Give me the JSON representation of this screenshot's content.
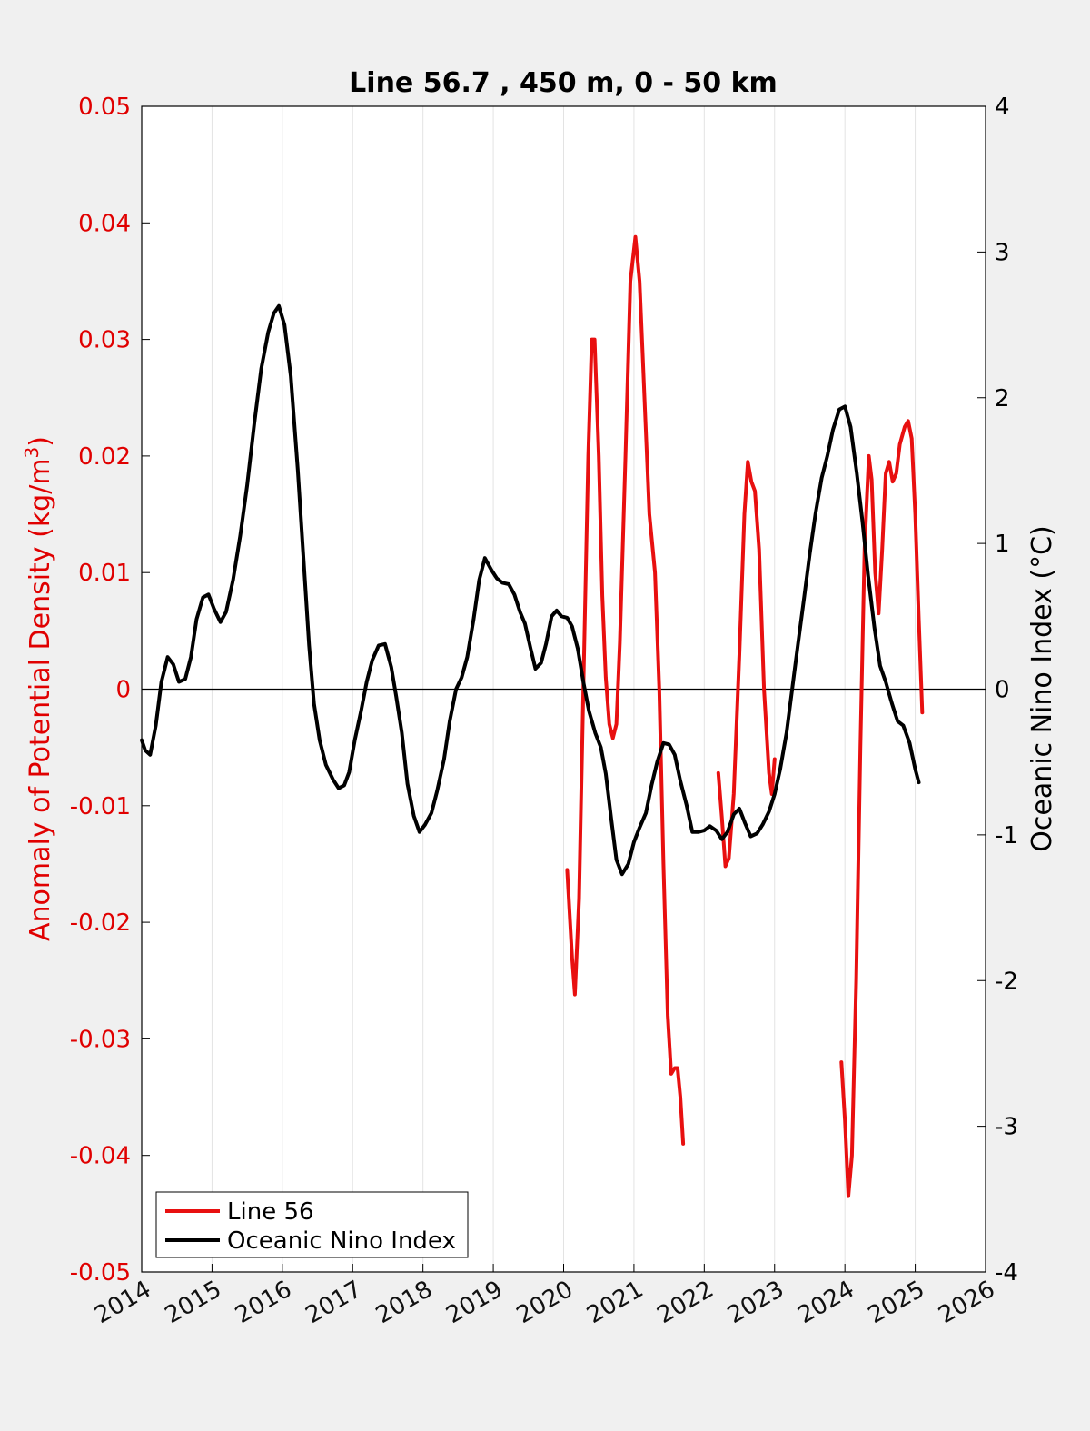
{
  "chart_data": {
    "type": "line",
    "title": "Line 56.7 , 450 m, 0 - 50 km",
    "xlim": [
      2014,
      2026
    ],
    "x_ticks": [
      "2014",
      "2015",
      "2016",
      "2017",
      "2018",
      "2019",
      "2020",
      "2021",
      "2022",
      "2023",
      "2024",
      "2025",
      "2026"
    ],
    "ylabel_left": {
      "prefix": "Anomaly of Potential Density (kg/m",
      "sup": "3",
      "suffix": ")"
    },
    "ylim_left": [
      -0.05,
      0.05
    ],
    "y_ticks_left": [
      "-0.05",
      "-0.04",
      "-0.03",
      "-0.02",
      "-0.01",
      "0",
      "0.01",
      "0.02",
      "0.03",
      "0.04",
      "0.05"
    ],
    "ylabel_right": "Oceanic Nino Index (°C)",
    "ylim_right": [
      -4,
      4
    ],
    "y_ticks_right": [
      "-4",
      "-3",
      "-2",
      "-1",
      "0",
      "1",
      "2",
      "3",
      "4"
    ],
    "grid": "vertical",
    "zero_line": true,
    "legend_position": "bottom-left",
    "colors": {
      "line56": "#e81010",
      "oni": "#000000",
      "left_axis": "#e00000",
      "background": "#f0f0f0"
    },
    "series": [
      {
        "name": "Line 56",
        "axis": "left",
        "segments": [
          [
            [
              2020.05,
              -0.0155
            ],
            [
              2020.12,
              -0.023
            ],
            [
              2020.16,
              -0.0262
            ],
            [
              2020.22,
              -0.018
            ],
            [
              2020.28,
              0.0
            ],
            [
              2020.35,
              0.02
            ],
            [
              2020.4,
              0.03
            ],
            [
              2020.44,
              0.03
            ],
            [
              2020.5,
              0.02
            ],
            [
              2020.55,
              0.008
            ],
            [
              2020.6,
              0.001
            ],
            [
              2020.65,
              -0.003
            ],
            [
              2020.7,
              -0.0042
            ],
            [
              2020.75,
              -0.003
            ],
            [
              2020.8,
              0.004
            ],
            [
              2020.88,
              0.02
            ],
            [
              2020.95,
              0.035
            ],
            [
              2021.02,
              0.0388
            ],
            [
              2021.08,
              0.035
            ],
            [
              2021.15,
              0.025
            ],
            [
              2021.22,
              0.015
            ],
            [
              2021.3,
              0.01
            ],
            [
              2021.36,
              0.0
            ],
            [
              2021.42,
              -0.015
            ],
            [
              2021.48,
              -0.028
            ],
            [
              2021.53,
              -0.033
            ],
            [
              2021.58,
              -0.0325
            ],
            [
              2021.62,
              -0.0325
            ],
            [
              2021.66,
              -0.035
            ],
            [
              2021.7,
              -0.039
            ]
          ],
          [
            [
              2022.2,
              -0.0072
            ],
            [
              2022.25,
              -0.011
            ],
            [
              2022.3,
              -0.0152
            ],
            [
              2022.35,
              -0.0145
            ],
            [
              2022.42,
              -0.009
            ],
            [
              2022.5,
              0.003
            ],
            [
              2022.57,
              0.015
            ],
            [
              2022.62,
              0.0195
            ],
            [
              2022.67,
              0.0178
            ],
            [
              2022.72,
              0.017
            ],
            [
              2022.78,
              0.012
            ],
            [
              2022.85,
              0.0
            ],
            [
              2022.92,
              -0.0072
            ],
            [
              2022.96,
              -0.009
            ],
            [
              2023.0,
              -0.006
            ]
          ],
          [
            [
              2023.95,
              -0.032
            ],
            [
              2024.0,
              -0.037
            ],
            [
              2024.05,
              -0.0435
            ],
            [
              2024.1,
              -0.04
            ],
            [
              2024.16,
              -0.025
            ],
            [
              2024.22,
              -0.005
            ],
            [
              2024.28,
              0.012
            ],
            [
              2024.34,
              0.02
            ],
            [
              2024.38,
              0.018
            ],
            [
              2024.43,
              0.01
            ],
            [
              2024.48,
              0.0065
            ],
            [
              2024.53,
              0.012
            ],
            [
              2024.58,
              0.0185
            ],
            [
              2024.63,
              0.0195
            ],
            [
              2024.68,
              0.0178
            ],
            [
              2024.73,
              0.0185
            ],
            [
              2024.78,
              0.021
            ],
            [
              2024.85,
              0.0225
            ],
            [
              2024.9,
              0.023
            ],
            [
              2024.95,
              0.0215
            ],
            [
              2025.0,
              0.015
            ],
            [
              2025.05,
              0.006
            ],
            [
              2025.1,
              -0.002
            ]
          ]
        ]
      },
      {
        "name": "Oceanic Nino Index",
        "axis": "right",
        "points": [
          [
            2014.0,
            -0.35
          ],
          [
            2014.05,
            -0.42
          ],
          [
            2014.12,
            -0.45
          ],
          [
            2014.2,
            -0.25
          ],
          [
            2014.28,
            0.05
          ],
          [
            2014.37,
            0.22
          ],
          [
            2014.45,
            0.17
          ],
          [
            2014.53,
            0.05
          ],
          [
            2014.62,
            0.07
          ],
          [
            2014.7,
            0.22
          ],
          [
            2014.78,
            0.48
          ],
          [
            2014.87,
            0.63
          ],
          [
            2014.95,
            0.65
          ],
          [
            2015.03,
            0.55
          ],
          [
            2015.12,
            0.46
          ],
          [
            2015.2,
            0.53
          ],
          [
            2015.3,
            0.75
          ],
          [
            2015.4,
            1.05
          ],
          [
            2015.5,
            1.4
          ],
          [
            2015.6,
            1.82
          ],
          [
            2015.7,
            2.2
          ],
          [
            2015.8,
            2.45
          ],
          [
            2015.88,
            2.58
          ],
          [
            2015.95,
            2.63
          ],
          [
            2016.03,
            2.5
          ],
          [
            2016.12,
            2.15
          ],
          [
            2016.22,
            1.5
          ],
          [
            2016.3,
            0.9
          ],
          [
            2016.38,
            0.3
          ],
          [
            2016.45,
            -0.1
          ],
          [
            2016.53,
            -0.35
          ],
          [
            2016.62,
            -0.52
          ],
          [
            2016.72,
            -0.62
          ],
          [
            2016.8,
            -0.68
          ],
          [
            2016.88,
            -0.66
          ],
          [
            2016.95,
            -0.57
          ],
          [
            2017.03,
            -0.35
          ],
          [
            2017.12,
            -0.15
          ],
          [
            2017.2,
            0.05
          ],
          [
            2017.28,
            0.2
          ],
          [
            2017.37,
            0.3
          ],
          [
            2017.46,
            0.31
          ],
          [
            2017.55,
            0.15
          ],
          [
            2017.62,
            -0.05
          ],
          [
            2017.7,
            -0.3
          ],
          [
            2017.78,
            -0.65
          ],
          [
            2017.87,
            -0.87
          ],
          [
            2017.95,
            -0.98
          ],
          [
            2018.03,
            -0.93
          ],
          [
            2018.12,
            -0.85
          ],
          [
            2018.2,
            -0.7
          ],
          [
            2018.3,
            -0.48
          ],
          [
            2018.38,
            -0.22
          ],
          [
            2018.47,
            0.0
          ],
          [
            2018.55,
            0.08
          ],
          [
            2018.63,
            0.22
          ],
          [
            2018.72,
            0.48
          ],
          [
            2018.8,
            0.75
          ],
          [
            2018.88,
            0.9
          ],
          [
            2018.97,
            0.82
          ],
          [
            2019.05,
            0.76
          ],
          [
            2019.13,
            0.73
          ],
          [
            2019.22,
            0.72
          ],
          [
            2019.3,
            0.65
          ],
          [
            2019.38,
            0.53
          ],
          [
            2019.45,
            0.45
          ],
          [
            2019.53,
            0.28
          ],
          [
            2019.6,
            0.14
          ],
          [
            2019.68,
            0.18
          ],
          [
            2019.75,
            0.31
          ],
          [
            2019.83,
            0.5
          ],
          [
            2019.9,
            0.54
          ],
          [
            2019.97,
            0.5
          ],
          [
            2020.05,
            0.49
          ],
          [
            2020.12,
            0.43
          ],
          [
            2020.2,
            0.28
          ],
          [
            2020.28,
            0.05
          ],
          [
            2020.36,
            -0.15
          ],
          [
            2020.45,
            -0.3
          ],
          [
            2020.53,
            -0.4
          ],
          [
            2020.6,
            -0.58
          ],
          [
            2020.68,
            -0.9
          ],
          [
            2020.75,
            -1.17
          ],
          [
            2020.83,
            -1.27
          ],
          [
            2020.92,
            -1.2
          ],
          [
            2021.0,
            -1.05
          ],
          [
            2021.08,
            -0.95
          ],
          [
            2021.17,
            -0.85
          ],
          [
            2021.25,
            -0.66
          ],
          [
            2021.33,
            -0.5
          ],
          [
            2021.42,
            -0.37
          ],
          [
            2021.5,
            -0.38
          ],
          [
            2021.58,
            -0.45
          ],
          [
            2021.66,
            -0.63
          ],
          [
            2021.75,
            -0.8
          ],
          [
            2021.83,
            -0.98
          ],
          [
            2021.92,
            -0.98
          ],
          [
            2022.0,
            -0.97
          ],
          [
            2022.08,
            -0.94
          ],
          [
            2022.17,
            -0.97
          ],
          [
            2022.25,
            -1.03
          ],
          [
            2022.33,
            -0.98
          ],
          [
            2022.42,
            -0.86
          ],
          [
            2022.5,
            -0.82
          ],
          [
            2022.58,
            -0.92
          ],
          [
            2022.66,
            -1.01
          ],
          [
            2022.75,
            -0.99
          ],
          [
            2022.83,
            -0.93
          ],
          [
            2022.92,
            -0.84
          ],
          [
            2023.0,
            -0.72
          ],
          [
            2023.08,
            -0.55
          ],
          [
            2023.17,
            -0.3
          ],
          [
            2023.25,
            0.0
          ],
          [
            2023.33,
            0.3
          ],
          [
            2023.42,
            0.63
          ],
          [
            2023.5,
            0.93
          ],
          [
            2023.58,
            1.2
          ],
          [
            2023.67,
            1.45
          ],
          [
            2023.75,
            1.6
          ],
          [
            2023.83,
            1.78
          ],
          [
            2023.92,
            1.92
          ],
          [
            2024.0,
            1.94
          ],
          [
            2024.08,
            1.8
          ],
          [
            2024.17,
            1.48
          ],
          [
            2024.25,
            1.15
          ],
          [
            2024.33,
            0.78
          ],
          [
            2024.42,
            0.42
          ],
          [
            2024.5,
            0.16
          ],
          [
            2024.58,
            0.05
          ],
          [
            2024.67,
            -0.1
          ],
          [
            2024.75,
            -0.22
          ],
          [
            2024.83,
            -0.25
          ],
          [
            2024.92,
            -0.37
          ],
          [
            2025.0,
            -0.55
          ],
          [
            2025.05,
            -0.64
          ]
        ]
      }
    ]
  },
  "legend": {
    "items": [
      "Line 56",
      "Oceanic Nino Index"
    ]
  }
}
